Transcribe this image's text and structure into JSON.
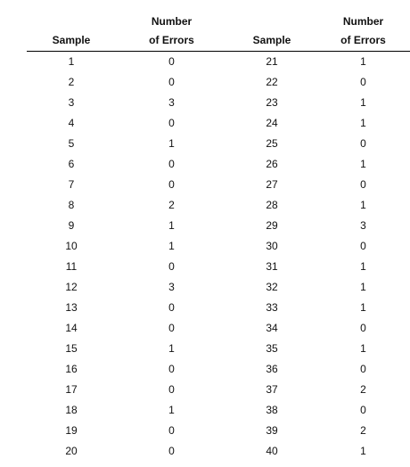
{
  "headers": [
    {
      "line1": "",
      "line2": "Sample"
    },
    {
      "line1": "Number",
      "line2": "of Errors"
    },
    {
      "line1": "",
      "line2": "Sample"
    },
    {
      "line1": "Number",
      "line2": "of Errors"
    }
  ],
  "rows": [
    [
      "1",
      "0",
      "21",
      "1"
    ],
    [
      "2",
      "0",
      "22",
      "0"
    ],
    [
      "3",
      "3",
      "23",
      "1"
    ],
    [
      "4",
      "0",
      "24",
      "1"
    ],
    [
      "5",
      "1",
      "25",
      "0"
    ],
    [
      "6",
      "0",
      "26",
      "1"
    ],
    [
      "7",
      "0",
      "27",
      "0"
    ],
    [
      "8",
      "2",
      "28",
      "1"
    ],
    [
      "9",
      "1",
      "29",
      "3"
    ],
    [
      "10",
      "1",
      "30",
      "0"
    ],
    [
      "11",
      "0",
      "31",
      "1"
    ],
    [
      "12",
      "3",
      "32",
      "1"
    ],
    [
      "13",
      "0",
      "33",
      "1"
    ],
    [
      "14",
      "0",
      "34",
      "0"
    ],
    [
      "15",
      "1",
      "35",
      "1"
    ],
    [
      "16",
      "0",
      "36",
      "0"
    ],
    [
      "17",
      "0",
      "37",
      "2"
    ],
    [
      "18",
      "1",
      "38",
      "0"
    ],
    [
      "19",
      "0",
      "39",
      "2"
    ],
    [
      "20",
      "0",
      "40",
      "1"
    ]
  ]
}
